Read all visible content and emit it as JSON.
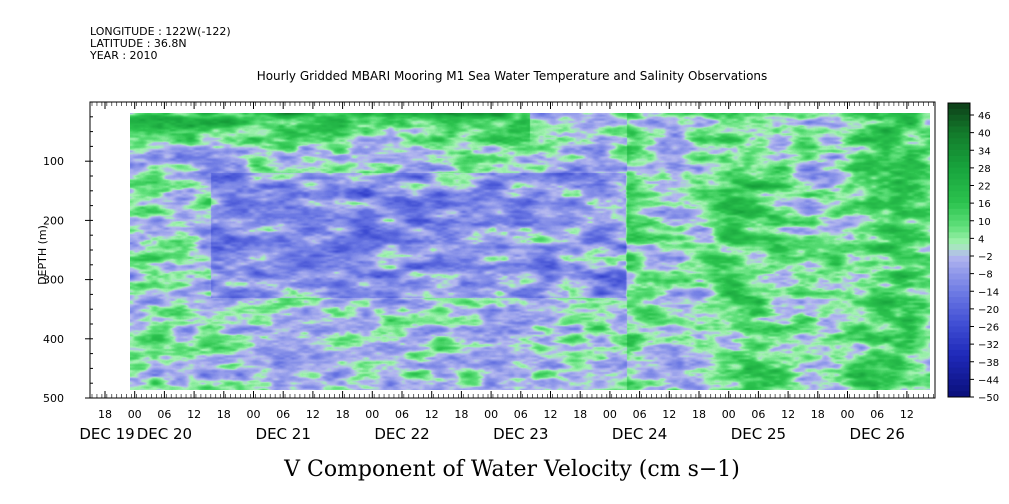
{
  "header": {
    "longitude": "LONGITUDE : 122W(-122)",
    "latitude": "LATITUDE : 36.8N",
    "year": "YEAR : 2010",
    "title": "Hourly Gridded MBARI Mooring M1 Sea Water Temperature and Salinity Observations"
  },
  "chart_data": {
    "type": "heatmap",
    "title": "Hourly Gridded MBARI Mooring M1 Sea Water Temperature and Salinity Observations",
    "xlabel": "V Component of Water Velocity (cm s−1)",
    "ylabel": "DEPTH (m)",
    "y_ticks": [
      100,
      200,
      300,
      400,
      500
    ],
    "y_tick_labels": [
      "100",
      "200",
      "300",
      "400",
      "500"
    ],
    "ylim": [
      500,
      0
    ],
    "data_depth_range": [
      20,
      485
    ],
    "x_hour_labels": [
      "18",
      "00",
      "06",
      "12",
      "18",
      "00",
      "06",
      "12",
      "18",
      "00",
      "06",
      "12",
      "18",
      "00",
      "06",
      "12",
      "18",
      "00",
      "06",
      "12",
      "18",
      "00",
      "06",
      "12",
      "18",
      "00",
      "06",
      "12"
    ],
    "x_day_labels": [
      {
        "label": "DEC 19",
        "hour_index": 0
      },
      {
        "label": "DEC 20",
        "hour_index": 2
      },
      {
        "label": "DEC 21",
        "hour_index": 6
      },
      {
        "label": "DEC 22",
        "hour_index": 10
      },
      {
        "label": "DEC 23",
        "hour_index": 14
      },
      {
        "label": "DEC 24",
        "hour_index": 18
      },
      {
        "label": "DEC 25",
        "hour_index": 22
      },
      {
        "label": "DEC 26",
        "hour_index": 26
      }
    ],
    "colorbar": {
      "labels": [
        "46",
        "40",
        "34",
        "28",
        "22",
        "16",
        "10",
        "4",
        "−2",
        "−8",
        "−14",
        "−20",
        "−26",
        "−32",
        "−38",
        "−44",
        "−50"
      ],
      "range": [
        -50,
        50
      ],
      "levels": [
        {
          "value": 50,
          "color": "#0d3d18"
        },
        {
          "value": 40,
          "color": "#137a2b"
        },
        {
          "value": 28,
          "color": "#17a33c"
        },
        {
          "value": 16,
          "color": "#2cc34e"
        },
        {
          "value": 8,
          "color": "#5fe07a"
        },
        {
          "value": 2,
          "color": "#a4f2b2"
        },
        {
          "value": -2,
          "color": "#b4b8ef"
        },
        {
          "value": -8,
          "color": "#8f98ea"
        },
        {
          "value": -16,
          "color": "#6673e2"
        },
        {
          "value": -26,
          "color": "#3d4bd2"
        },
        {
          "value": -36,
          "color": "#1e29b8"
        },
        {
          "value": -50,
          "color": "#0a0f7a"
        }
      ]
    },
    "field_description": "V velocity, depth vs time, 2010-12-19 to 2010-12-26"
  }
}
